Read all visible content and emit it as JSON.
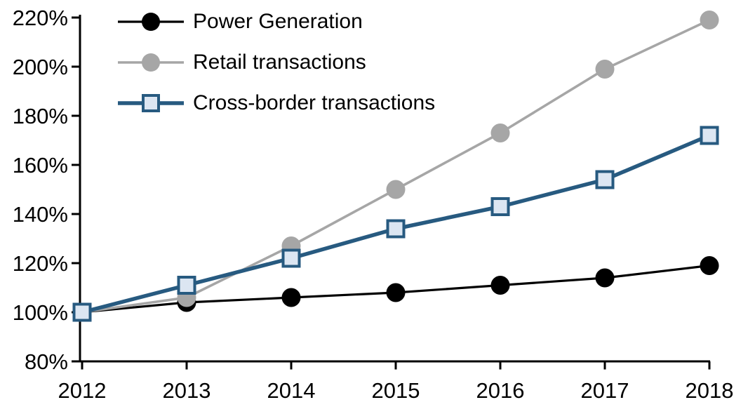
{
  "chart_data": {
    "type": "line",
    "title": "",
    "x_tick_labels": [
      "2012",
      "2013",
      "2014",
      "2015",
      "2016",
      "2017",
      "2018"
    ],
    "y_tick_labels": [
      "80%",
      "100%",
      "120%",
      "140%",
      "160%",
      "180%",
      "200%",
      "220%"
    ],
    "y_axis": {
      "min": 80,
      "max": 220,
      "step": 20,
      "suffix": "%"
    },
    "categories": [
      2012,
      2013,
      2014,
      2015,
      2016,
      2017,
      2018
    ],
    "series": [
      {
        "name": "Power Generation",
        "values": [
          100,
          104,
          106,
          108,
          111,
          114,
          119
        ],
        "color": "#000000",
        "marker": "circle",
        "marker_fill": "#000000",
        "line_width": 3.2
      },
      {
        "name": "Retail transactions",
        "values": [
          100,
          106,
          127,
          150,
          173,
          199,
          219
        ],
        "color": "#a6a6a6",
        "marker": "circle",
        "marker_fill": "#a6a6a6",
        "line_width": 3.6
      },
      {
        "name": "Cross-border transactions",
        "values": [
          100,
          111,
          122,
          134,
          143,
          154,
          172
        ],
        "color": "#275a80",
        "marker": "square",
        "marker_fill": "#dce6f2",
        "line_width": 5.5
      }
    ],
    "legend_position": "top-left",
    "grid": false,
    "axis_color": "#000000"
  }
}
